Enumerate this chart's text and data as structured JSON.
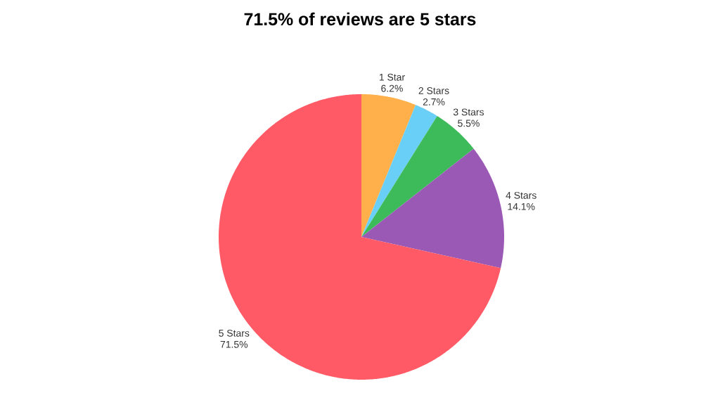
{
  "chart_data": {
    "type": "pie",
    "title": "71.5% of reviews are 5 stars",
    "categories": [
      "1 Star",
      "2 Stars",
      "3 Stars",
      "4 Stars",
      "5 Stars"
    ],
    "values": [
      6.2,
      2.7,
      5.5,
      14.1,
      71.5
    ],
    "value_labels": [
      "6.2%",
      "2.7%",
      "5.5%",
      "14.1%",
      "71.5%"
    ],
    "colors": [
      "#ffb04a",
      "#6acff6",
      "#3dbb5a",
      "#9b59b6",
      "#ff5a65"
    ]
  }
}
